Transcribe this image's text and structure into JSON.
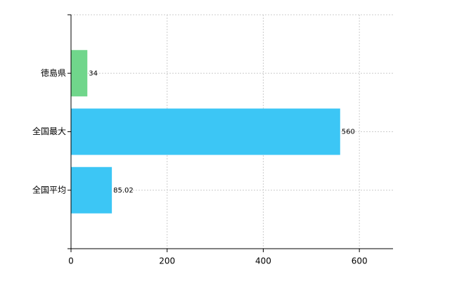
{
  "chart_data": {
    "type": "hbar",
    "categories": [
      "徳島県",
      "全国最大",
      "全国平均"
    ],
    "values": [
      34,
      560,
      85.02
    ],
    "colors": [
      "#70d68b",
      "#3cc6f5",
      "#3cc6f5"
    ],
    "xlim": [
      0,
      670
    ],
    "xticks": [
      0,
      200,
      400,
      600
    ],
    "grid": true
  }
}
